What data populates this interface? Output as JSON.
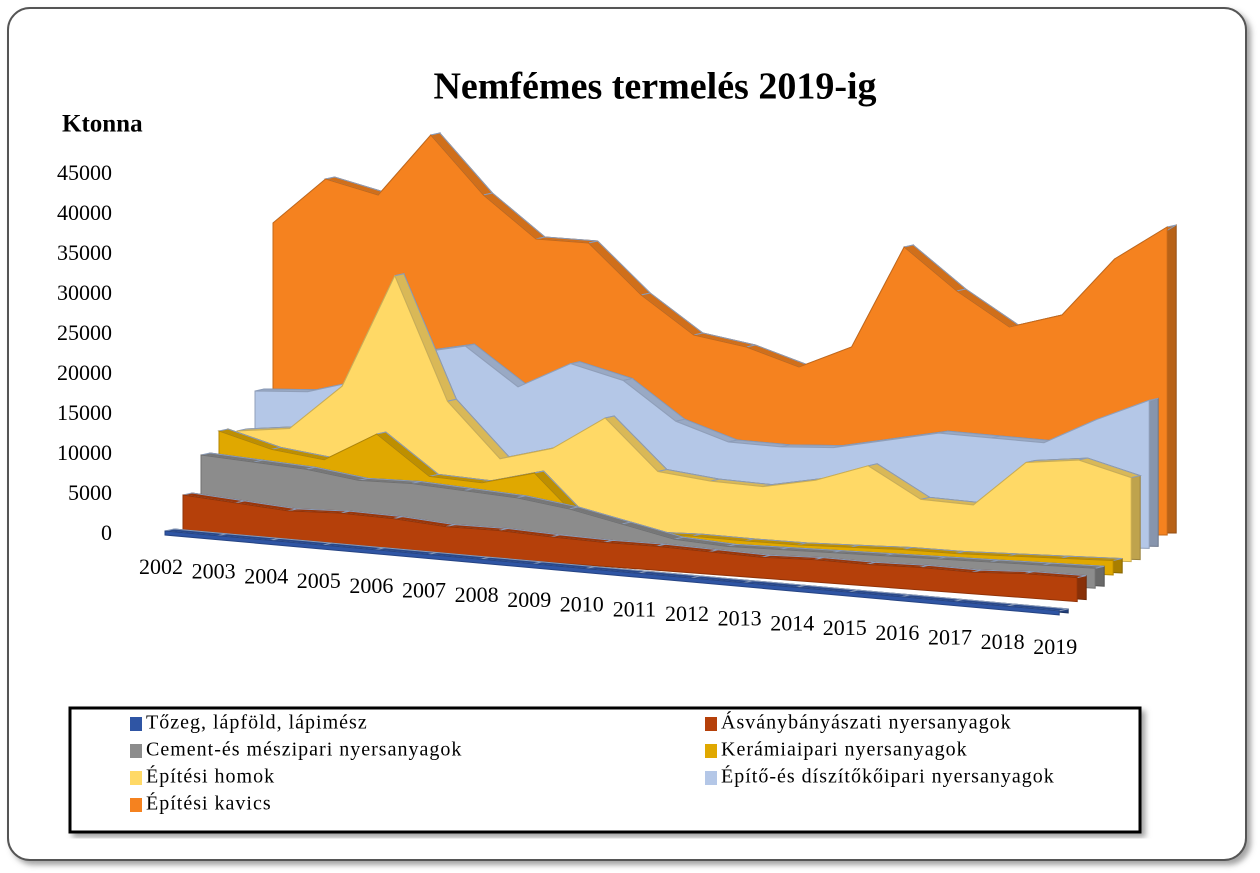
{
  "chart_data": {
    "type": "area3d",
    "title": "Nemfémes termelés 2019-ig",
    "y_label": "Ktonna",
    "categories": [
      "2002",
      "2003",
      "2004",
      "2005",
      "2006",
      "2007",
      "2008",
      "2009",
      "2010",
      "2011",
      "2012",
      "2013",
      "2014",
      "2015",
      "2016",
      "2017",
      "2018",
      "2019"
    ],
    "ylim": [
      0,
      45000
    ],
    "yticks": [
      0,
      5000,
      10000,
      15000,
      20000,
      25000,
      30000,
      35000,
      40000,
      45000
    ],
    "series": [
      {
        "name": "Tőzeg, lápföld, lápimész",
        "color": "#2f55a4",
        "values": [
          500,
          500,
          500,
          500,
          500,
          500,
          500,
          500,
          500,
          500,
          500,
          500,
          500,
          500,
          500,
          500,
          500,
          500
        ]
      },
      {
        "name": "Ásványbányászati nyersanyagok",
        "color": "#b5400a",
        "values": [
          5000,
          4500,
          4000,
          4200,
          4000,
          3500,
          3500,
          3200,
          3000,
          3000,
          2800,
          2600,
          2800,
          2700,
          2800,
          2700,
          3000,
          3000
        ]
      },
      {
        "name": "Cement-és mészipari nyersanyagok",
        "color": "#8c8c8c",
        "values": [
          10000,
          9500,
          9000,
          8000,
          8000,
          7500,
          7000,
          6000,
          4500,
          3000,
          2500,
          2500,
          2500,
          2500,
          2500,
          2500,
          2500,
          2500
        ]
      },
      {
        "name": "Kerámiaipari nyersanyagok",
        "color": "#e0a800",
        "values": [
          13000,
          11000,
          10000,
          13500,
          8500,
          8000,
          9500,
          3000,
          2500,
          2500,
          2200,
          2000,
          2000,
          2000,
          1800,
          1800,
          1800,
          1800
        ]
      },
      {
        "name": "Építési homok",
        "color": "#ffd966",
        "values": [
          13000,
          13500,
          19000,
          33000,
          17500,
          10500,
          12000,
          16000,
          9500,
          8500,
          8000,
          9000,
          11000,
          7000,
          6500,
          12000,
          12500,
          10500
        ]
      },
      {
        "name": "Építő-és díszítőkőipari nyersanyagok",
        "color": "#b4c7e7",
        "values": [
          18000,
          18000,
          19500,
          23000,
          24000,
          19000,
          22000,
          20000,
          15000,
          12500,
          12000,
          12000,
          13000,
          14000,
          13500,
          13000,
          16000,
          18500
        ]
      },
      {
        "name": "Építési kavics",
        "color": "#f5821f",
        "values": [
          39000,
          44500,
          42500,
          50000,
          42500,
          37000,
          36500,
          30000,
          25000,
          23500,
          21000,
          23500,
          36000,
          30500,
          26000,
          27500,
          34500,
          38500
        ]
      }
    ]
  }
}
